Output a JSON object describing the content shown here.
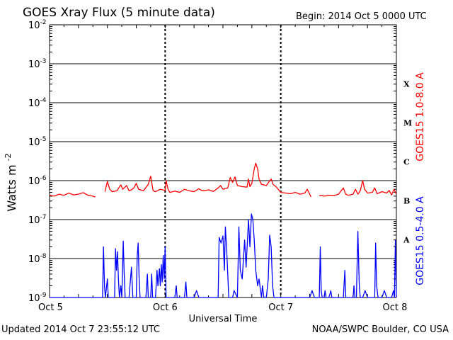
{
  "header": {
    "title": "GOES Xray Flux (5 minute data)",
    "begin": "Begin:  2014 Oct 5 0000 UTC"
  },
  "footer": {
    "updated": "Updated 2014 Oct  7 23:55:12 UTC",
    "source": "NOAA/SWPC Boulder, CO USA"
  },
  "chart_data": {
    "type": "line",
    "title": "GOES Xray Flux (5 minute data)",
    "xlabel": "Universal Time",
    "ylabel": "Watts m",
    "ylabel_exp": "-2",
    "yscale": "log",
    "ylim": [
      1e-09,
      0.01
    ],
    "xlim": [
      0,
      72
    ],
    "x_units": "hours since 2014 Oct 5 0000 UTC",
    "x_ticks": [
      {
        "x": 0,
        "label": "Oct 5"
      },
      {
        "x": 24,
        "label": "Oct 6"
      },
      {
        "x": 48,
        "label": "Oct 7"
      },
      {
        "x": 72,
        "label": "Oct 8"
      }
    ],
    "y_ticks": [
      {
        "exp": -2,
        "base": "10",
        "sup": "-2"
      },
      {
        "exp": -3,
        "base": "10",
        "sup": "-3"
      },
      {
        "exp": -4,
        "base": "10",
        "sup": "-4"
      },
      {
        "exp": -5,
        "base": "10",
        "sup": "-5"
      },
      {
        "exp": -6,
        "base": "10",
        "sup": "-6"
      },
      {
        "exp": -7,
        "base": "10",
        "sup": "-7"
      },
      {
        "exp": -8,
        "base": "10",
        "sup": "-8"
      },
      {
        "exp": -9,
        "base": "10",
        "sup": "-9"
      }
    ],
    "flare_classes": [
      {
        "label": "X",
        "exp": -3.5
      },
      {
        "label": "M",
        "exp": -4.5
      },
      {
        "label": "C",
        "exp": -5.5
      },
      {
        "label": "B",
        "exp": -6.5
      },
      {
        "label": "A",
        "exp": -7.5
      }
    ],
    "grid": true,
    "series": [
      {
        "name": "GOES15 1.0-8.0 A",
        "color": "#ff0000",
        "segments": [
          [
            [
              0,
              4.2e-07
            ],
            [
              1,
              4e-07
            ],
            [
              2,
              4.5e-07
            ],
            [
              3,
              4.2e-07
            ],
            [
              4,
              4.8e-07
            ],
            [
              5,
              4.3e-07
            ],
            [
              6,
              4.5e-07
            ],
            [
              7,
              4.9e-07
            ],
            [
              8,
              4.2e-07
            ],
            [
              9,
              4e-07
            ],
            [
              9.5,
              3.8e-07
            ]
          ],
          [
            [
              11.5,
              5.2e-07
            ],
            [
              12,
              9.5e-07
            ],
            [
              12.5,
              6e-07
            ],
            [
              13,
              5.2e-07
            ],
            [
              14,
              5.5e-07
            ],
            [
              14.8,
              7.8e-07
            ],
            [
              15.2,
              6e-07
            ],
            [
              16,
              7.5e-07
            ],
            [
              16.5,
              5.5e-07
            ],
            [
              17,
              5.8e-07
            ],
            [
              17.5,
              6.5e-07
            ],
            [
              18,
              8.5e-07
            ],
            [
              18.5,
              6e-07
            ],
            [
              19.5,
              5.5e-07
            ],
            [
              20.5,
              8e-07
            ],
            [
              21,
              1.3e-06
            ],
            [
              21.5,
              5.5e-07
            ],
            [
              22,
              5.2e-07
            ],
            [
              23,
              6e-07
            ],
            [
              24,
              5.6e-07
            ],
            [
              24.2,
              1e-06
            ],
            [
              24.6,
              6e-07
            ],
            [
              25,
              5e-07
            ],
            [
              26,
              5.4e-07
            ],
            [
              27,
              5e-07
            ],
            [
              28,
              6e-07
            ],
            [
              29,
              5.5e-07
            ],
            [
              30,
              5.2e-07
            ],
            [
              31,
              6.2e-07
            ],
            [
              31.5,
              5.6e-07
            ],
            [
              32,
              5.5e-07
            ],
            [
              33,
              5.8e-07
            ],
            [
              34,
              5.3e-07
            ],
            [
              35,
              6.5e-07
            ],
            [
              35.5,
              7.5e-07
            ],
            [
              36,
              6e-07
            ],
            [
              37,
              6.5e-07
            ],
            [
              37.5,
              1.2e-06
            ],
            [
              38,
              9e-07
            ],
            [
              38.5,
              1.25e-06
            ],
            [
              39,
              7.5e-07
            ],
            [
              40,
              7e-07
            ],
            [
              41,
              6.8e-07
            ],
            [
              41.3,
              1.1e-06
            ],
            [
              41.6,
              7e-07
            ],
            [
              42,
              8.5e-07
            ],
            [
              42.5,
              2e-06
            ],
            [
              42.8,
              2.8e-06
            ],
            [
              43.2,
              2e-06
            ],
            [
              43.5,
              1.1e-06
            ],
            [
              44,
              8e-07
            ],
            [
              45,
              7.5e-07
            ],
            [
              46,
              1.1e-06
            ],
            [
              46.4,
              8e-07
            ],
            [
              47,
              7e-07
            ],
            [
              48,
              5e-07
            ],
            [
              49,
              4.8e-07
            ],
            [
              50,
              4.6e-07
            ],
            [
              51,
              5e-07
            ],
            [
              52,
              4.5e-07
            ],
            [
              53,
              4.8e-07
            ],
            [
              53.5,
              6e-07
            ],
            [
              54,
              4.5e-07
            ],
            [
              54.3,
              3.8e-07
            ]
          ],
          [
            [
              56,
              4.2e-07
            ],
            [
              57,
              4e-07
            ],
            [
              58,
              4.2e-07
            ],
            [
              59,
              4.1e-07
            ],
            [
              60,
              4.5e-07
            ],
            [
              61,
              6.5e-07
            ],
            [
              61.5,
              4.5e-07
            ],
            [
              62,
              4.2e-07
            ],
            [
              63,
              4.5e-07
            ],
            [
              63.5,
              6e-07
            ],
            [
              64,
              4.5e-07
            ],
            [
              64.5,
              5.5e-07
            ],
            [
              65,
              1e-06
            ],
            [
              65.4,
              6e-07
            ],
            [
              66,
              4.8e-07
            ],
            [
              67,
              5e-07
            ],
            [
              67.5,
              6.5e-07
            ],
            [
              68,
              4.6e-07
            ],
            [
              69,
              5.2e-07
            ],
            [
              70,
              4.8e-07
            ],
            [
              70.5,
              5.6e-07
            ],
            [
              71,
              4.3e-07
            ],
            [
              71.5,
              6e-07
            ],
            [
              72,
              4.5e-07
            ]
          ]
        ]
      },
      {
        "name": "GOES15 0.5-4.0 A",
        "color": "#0000ff",
        "segments": [
          [
            [
              0,
              1e-09
            ],
            [
              11,
              1e-09
            ],
            [
              11.2,
              2e-08
            ],
            [
              11.4,
              2e-09
            ],
            [
              11.6,
              1e-09
            ],
            [
              12,
              3e-09
            ],
            [
              12.2,
              1e-09
            ],
            [
              13.5,
              1e-09
            ],
            [
              13.7,
              1.8e-08
            ],
            [
              13.9,
              5e-09
            ],
            [
              14.1,
              1.5e-08
            ],
            [
              14.3,
              3e-09
            ],
            [
              14.5,
              1e-09
            ],
            [
              14.8,
              2e-09
            ],
            [
              15,
              1e-09
            ],
            [
              15.3,
              2.8e-08
            ],
            [
              15.5,
              4e-09
            ],
            [
              15.7,
              1e-09
            ],
            [
              16.5,
              1e-09
            ],
            [
              17,
              6e-09
            ],
            [
              17.3,
              1e-09
            ],
            [
              18,
              1e-09
            ],
            [
              18.2,
              1.2e-08
            ],
            [
              18.4,
              2.5e-08
            ],
            [
              18.6,
              3e-09
            ],
            [
              18.8,
              1e-09
            ],
            [
              20,
              1e-09
            ],
            [
              20.3,
              4e-09
            ],
            [
              20.5,
              1e-09
            ],
            [
              21,
              1e-09
            ],
            [
              21.2,
              4e-09
            ],
            [
              21.4,
              1e-09
            ],
            [
              22,
              1e-09
            ],
            [
              22.3,
              5e-09
            ],
            [
              22.5,
              2e-09
            ],
            [
              22.8,
              5.5e-09
            ],
            [
              23,
              2e-09
            ],
            [
              23.2,
              7e-09
            ],
            [
              23.4,
              2.5e-09
            ],
            [
              23.6,
              1.2e-08
            ],
            [
              23.8,
              3e-09
            ],
            [
              24,
              2e-08
            ],
            [
              24.2,
              1e-09
            ],
            [
              25,
              1e-09
            ],
            [
              26,
              1e-09
            ],
            [
              26.3,
              2e-09
            ],
            [
              26.5,
              1e-09
            ],
            [
              28,
              1e-09
            ],
            [
              28.3,
              2.5e-09
            ],
            [
              28.5,
              1e-09
            ],
            [
              30,
              1e-09
            ],
            [
              30.5,
              1.5e-09
            ],
            [
              31,
              1e-09
            ],
            [
              33,
              1e-09
            ],
            [
              34,
              1e-09
            ],
            [
              35,
              1e-09
            ],
            [
              35.2,
              3.5e-08
            ],
            [
              35.6,
              2.5e-08
            ],
            [
              36,
              3.8e-08
            ],
            [
              36.3,
              5e-09
            ],
            [
              36.5,
              6.5e-08
            ],
            [
              36.8,
              1.5e-08
            ],
            [
              37.2,
              1e-09
            ],
            [
              38,
              1e-09
            ],
            [
              38.3,
              1.5e-09
            ],
            [
              39,
              1e-09
            ],
            [
              39.3,
              6.5e-08
            ],
            [
              39.6,
              5e-09
            ],
            [
              40,
              3e-09
            ],
            [
              40.5,
              3e-08
            ],
            [
              40.8,
              6e-09
            ],
            [
              41.3,
              1e-07
            ],
            [
              41.6,
              2e-08
            ],
            [
              41.9,
              1.4e-07
            ],
            [
              42.2,
              1e-07
            ],
            [
              42.5,
              3e-08
            ],
            [
              42.8,
              5e-09
            ],
            [
              43.2,
              2e-09
            ],
            [
              43.5,
              3e-09
            ],
            [
              44,
              1e-09
            ],
            [
              44.2,
              2e-09
            ],
            [
              44.5,
              1e-09
            ],
            [
              45,
              1e-09
            ],
            [
              45.4,
              3e-09
            ],
            [
              45.7,
              4e-08
            ],
            [
              46,
              2e-08
            ],
            [
              46.3,
              2e-09
            ],
            [
              46.6,
              1e-09
            ],
            [
              48,
              1e-09
            ],
            [
              50,
              1e-09
            ],
            [
              52,
              1e-09
            ],
            [
              54,
              1e-09
            ],
            [
              54.5,
              1.5e-09
            ],
            [
              55,
              1e-09
            ],
            [
              56,
              1e-09
            ],
            [
              56.2,
              2e-08
            ],
            [
              56.4,
              1.5e-09
            ],
            [
              56.6,
              1e-09
            ],
            [
              57,
              1e-09
            ],
            [
              57.2,
              1.5e-09
            ],
            [
              57.4,
              1e-09
            ],
            [
              58,
              1e-09
            ],
            [
              58.4,
              1.5e-09
            ],
            [
              58.6,
              1e-09
            ],
            [
              60,
              1e-09
            ],
            [
              61,
              1e-09
            ],
            [
              61.3,
              5e-09
            ],
            [
              61.5,
              1e-09
            ],
            [
              62,
              1e-09
            ],
            [
              63,
              1e-09
            ],
            [
              63.2,
              2e-09
            ],
            [
              63.4,
              1e-09
            ],
            [
              63.7,
              1e-09
            ],
            [
              64,
              5e-08
            ],
            [
              64.3,
              2e-09
            ],
            [
              64.5,
              1e-09
            ],
            [
              65,
              1e-09
            ],
            [
              65.5,
              1.5e-09
            ],
            [
              66,
              1e-09
            ],
            [
              67.5,
              1e-09
            ],
            [
              67.7,
              2.5e-08
            ],
            [
              67.9,
              2e-09
            ],
            [
              68.2,
              1e-09
            ],
            [
              69,
              1e-09
            ],
            [
              69.5,
              1.5e-09
            ],
            [
              70,
              1e-09
            ],
            [
              71,
              1e-09
            ],
            [
              71.4,
              1.5e-09
            ],
            [
              71.6,
              1e-09
            ],
            [
              71.8,
              3e-08
            ],
            [
              72,
              1e-09
            ]
          ]
        ]
      }
    ],
    "gaps": [
      [
        9.5,
        11.5
      ],
      [
        54.3,
        56
      ]
    ]
  }
}
